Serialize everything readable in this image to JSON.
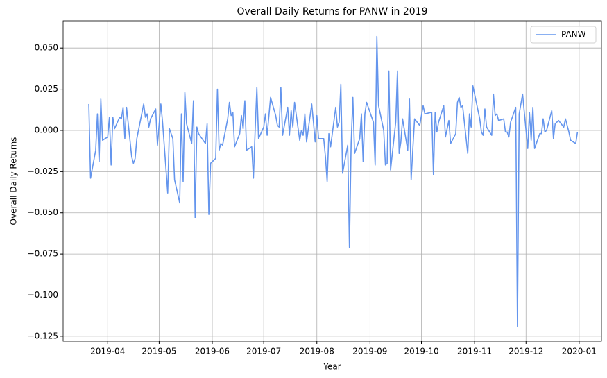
{
  "chart_data": {
    "type": "line",
    "title": "Overall Daily Returns for PANW in 2019",
    "xlabel": "Year",
    "ylabel": "Overall Daily Returns",
    "x": [
      "2019-03-21",
      "2019-03-22",
      "2019-03-25",
      "2019-03-26",
      "2019-03-27",
      "2019-03-28",
      "2019-03-29",
      "2019-04-01",
      "2019-04-02",
      "2019-04-03",
      "2019-04-04",
      "2019-04-05",
      "2019-04-08",
      "2019-04-09",
      "2019-04-10",
      "2019-04-11",
      "2019-04-12",
      "2019-04-15",
      "2019-04-16",
      "2019-04-17",
      "2019-04-18",
      "2019-04-22",
      "2019-04-23",
      "2019-04-24",
      "2019-04-25",
      "2019-04-26",
      "2019-04-29",
      "2019-04-30",
      "2019-05-02",
      "2019-05-03",
      "2019-05-06",
      "2019-05-07",
      "2019-05-09",
      "2019-05-10",
      "2019-05-13",
      "2019-05-14",
      "2019-05-15",
      "2019-05-16",
      "2019-05-17",
      "2019-05-20",
      "2019-05-21",
      "2019-05-22",
      "2019-05-23",
      "2019-05-24",
      "2019-05-28",
      "2019-05-29",
      "2019-05-30",
      "2019-05-31",
      "2019-06-03",
      "2019-06-04",
      "2019-06-05",
      "2019-06-06",
      "2019-06-07",
      "2019-06-10",
      "2019-06-11",
      "2019-06-12",
      "2019-06-13",
      "2019-06-14",
      "2019-06-17",
      "2019-06-18",
      "2019-06-19",
      "2019-06-20",
      "2019-06-21",
      "2019-06-24",
      "2019-06-25",
      "2019-06-26",
      "2019-06-27",
      "2019-06-28",
      "2019-07-01",
      "2019-07-02",
      "2019-07-03",
      "2019-07-05",
      "2019-07-08",
      "2019-07-09",
      "2019-07-10",
      "2019-07-11",
      "2019-07-12",
      "2019-07-15",
      "2019-07-16",
      "2019-07-17",
      "2019-07-18",
      "2019-07-19",
      "2019-07-22",
      "2019-07-23",
      "2019-07-24",
      "2019-07-25",
      "2019-07-26",
      "2019-07-29",
      "2019-07-30",
      "2019-07-31",
      "2019-08-01",
      "2019-08-02",
      "2019-08-05",
      "2019-08-06",
      "2019-08-07",
      "2019-08-08",
      "2019-08-09",
      "2019-08-12",
      "2019-08-13",
      "2019-08-14",
      "2019-08-15",
      "2019-08-16",
      "2019-08-19",
      "2019-08-20",
      "2019-08-21",
      "2019-08-22",
      "2019-08-23",
      "2019-08-26",
      "2019-08-27",
      "2019-08-28",
      "2019-08-29",
      "2019-08-30",
      "2019-09-03",
      "2019-09-04",
      "2019-09-05",
      "2019-09-06",
      "2019-09-09",
      "2019-09-10",
      "2019-09-11",
      "2019-09-12",
      "2019-09-13",
      "2019-09-16",
      "2019-09-17",
      "2019-09-18",
      "2019-09-19",
      "2019-09-20",
      "2019-09-23",
      "2019-09-24",
      "2019-09-25",
      "2019-09-26",
      "2019-09-27",
      "2019-09-30",
      "2019-10-02",
      "2019-10-03",
      "2019-10-07",
      "2019-10-08",
      "2019-10-09",
      "2019-10-10",
      "2019-10-11",
      "2019-10-14",
      "2019-10-15",
      "2019-10-17",
      "2019-10-18",
      "2019-10-21",
      "2019-10-22",
      "2019-10-23",
      "2019-10-24",
      "2019-10-25",
      "2019-10-28",
      "2019-10-29",
      "2019-10-30",
      "2019-10-31",
      "2019-11-04",
      "2019-11-05",
      "2019-11-06",
      "2019-11-07",
      "2019-11-08",
      "2019-11-11",
      "2019-11-12",
      "2019-11-13",
      "2019-11-14",
      "2019-11-15",
      "2019-11-18",
      "2019-11-19",
      "2019-11-20",
      "2019-11-21",
      "2019-11-22",
      "2019-11-25",
      "2019-11-26",
      "2019-11-27",
      "2019-11-29",
      "2019-12-02",
      "2019-12-03",
      "2019-12-04",
      "2019-12-05",
      "2019-12-06",
      "2019-12-09",
      "2019-12-10",
      "2019-12-11",
      "2019-12-12",
      "2019-12-13",
      "2019-12-16",
      "2019-12-17",
      "2019-12-18",
      "2019-12-19",
      "2019-12-20",
      "2019-12-23",
      "2019-12-24",
      "2019-12-26",
      "2019-12-27",
      "2019-12-30",
      "2019-12-31"
    ],
    "series": [
      {
        "name": "PANW",
        "color": "#6495ed",
        "values": [
          0.016,
          -0.029,
          -0.012,
          0.01,
          -0.019,
          0.019,
          -0.006,
          -0.004,
          0.008,
          -0.021,
          0.008,
          0.001,
          0.008,
          0.007,
          0.014,
          -0.005,
          0.014,
          -0.016,
          -0.02,
          -0.017,
          -0.005,
          0.016,
          0.008,
          0.01,
          0.002,
          0.007,
          0.013,
          -0.009,
          0.016,
          0.005,
          -0.038,
          0.001,
          -0.005,
          -0.03,
          -0.044,
          0.01,
          -0.031,
          0.023,
          0.004,
          -0.008,
          0.018,
          -0.053,
          0.002,
          -0.002,
          -0.008,
          0.004,
          -0.051,
          -0.02,
          -0.017,
          0.025,
          -0.012,
          -0.008,
          -0.009,
          0.007,
          0.017,
          0.009,
          0.011,
          -0.01,
          -0.002,
          0.009,
          0.001,
          0.018,
          -0.012,
          -0.01,
          -0.029,
          0.0,
          0.026,
          -0.005,
          0.002,
          0.01,
          -0.003,
          0.02,
          0.009,
          0.003,
          0.002,
          0.026,
          -0.003,
          0.014,
          -0.003,
          0.012,
          0.002,
          0.017,
          -0.006,
          0.0,
          -0.003,
          0.01,
          -0.007,
          0.016,
          0.005,
          -0.007,
          0.009,
          -0.005,
          -0.005,
          -0.016,
          -0.031,
          -0.002,
          -0.01,
          0.014,
          0.002,
          0.005,
          0.028,
          -0.026,
          -0.009,
          -0.071,
          -0.008,
          0.02,
          -0.014,
          -0.005,
          0.01,
          -0.019,
          0.01,
          0.017,
          0.005,
          -0.021,
          0.057,
          0.015,
          0.0,
          -0.021,
          -0.02,
          0.036,
          -0.024,
          0.005,
          0.036,
          -0.014,
          -0.007,
          0.007,
          -0.012,
          0.019,
          -0.03,
          -0.011,
          0.007,
          0.003,
          0.015,
          0.01,
          0.011,
          -0.027,
          0.011,
          -0.001,
          0.005,
          0.015,
          -0.004,
          0.006,
          -0.008,
          -0.002,
          0.017,
          0.02,
          0.014,
          0.015,
          -0.014,
          0.01,
          0.002,
          0.027,
          0.007,
          -0.001,
          -0.003,
          0.013,
          0.002,
          -0.003,
          0.022,
          0.009,
          0.01,
          0.006,
          0.007,
          -0.001,
          -0.001,
          -0.004,
          0.005,
          0.014,
          -0.119,
          0.01,
          0.022,
          -0.011,
          0.011,
          -0.006,
          0.014,
          -0.011,
          -0.002,
          -0.002,
          0.007,
          -0.001,
          0.0,
          0.012,
          -0.005,
          0.004,
          0.005,
          0.006,
          0.002,
          0.007,
          -0.001,
          -0.006,
          -0.008,
          -0.001
        ]
      }
    ],
    "xlim": [
      "2019-03-06",
      "2020-01-14"
    ],
    "xticks": [
      "2019-04",
      "2019-05",
      "2019-06",
      "2019-07",
      "2019-08",
      "2019-09",
      "2019-10",
      "2019-11",
      "2019-12",
      "2020-01"
    ],
    "ylim": [
      -0.128,
      0.0665
    ],
    "yticks": [
      {
        "value": -0.125,
        "label": "−0.125"
      },
      {
        "value": -0.1,
        "label": "−0.100"
      },
      {
        "value": -0.075,
        "label": "−0.075"
      },
      {
        "value": -0.05,
        "label": "−0.050"
      },
      {
        "value": -0.025,
        "label": "−0.025"
      },
      {
        "value": 0,
        "label": "0.000"
      },
      {
        "value": 0.025,
        "label": "0.025"
      },
      {
        "value": 0.05,
        "label": "0.050"
      }
    ],
    "grid": true,
    "legend": "upper right"
  }
}
